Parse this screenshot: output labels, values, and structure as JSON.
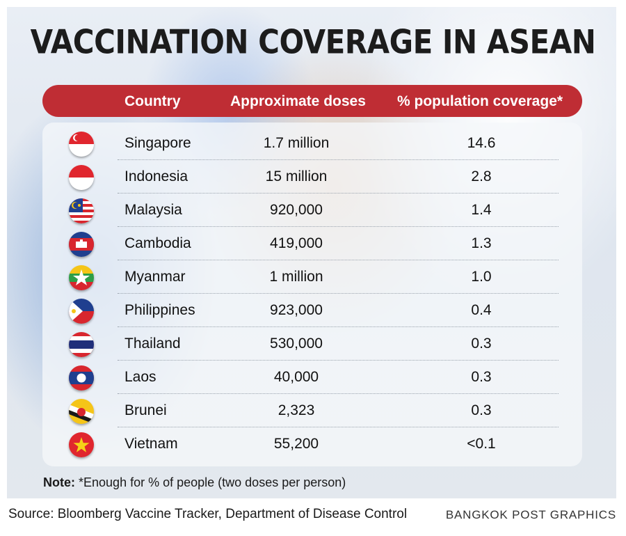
{
  "title": "VACCINATION COVERAGE IN ASEAN",
  "columns": [
    "Country",
    "Approximate doses",
    "% population coverage*"
  ],
  "chart_data": {
    "type": "table",
    "title": "VACCINATION COVERAGE IN ASEAN",
    "columns": [
      "Country",
      "Approximate doses",
      "% population coverage*"
    ],
    "rows": [
      {
        "country": "Singapore",
        "flag": "singapore-flag-icon",
        "doses": "1.7 million",
        "coverage": "14.6"
      },
      {
        "country": "Indonesia",
        "flag": "indonesia-flag-icon",
        "doses": "15 million",
        "coverage": "2.8"
      },
      {
        "country": "Malaysia",
        "flag": "malaysia-flag-icon",
        "doses": "920,000",
        "coverage": "1.4"
      },
      {
        "country": "Cambodia",
        "flag": "cambodia-flag-icon",
        "doses": "419,000",
        "coverage": "1.3"
      },
      {
        "country": "Myanmar",
        "flag": "myanmar-flag-icon",
        "doses": "1 million",
        "coverage": "1.0"
      },
      {
        "country": "Philippines",
        "flag": "philippines-flag-icon",
        "doses": "923,000",
        "coverage": "0.4"
      },
      {
        "country": "Thailand",
        "flag": "thailand-flag-icon",
        "doses": "530,000",
        "coverage": "0.3"
      },
      {
        "country": "Laos",
        "flag": "laos-flag-icon",
        "doses": "40,000",
        "coverage": "0.3"
      },
      {
        "country": "Brunei",
        "flag": "brunei-flag-icon",
        "doses": "2,323",
        "coverage": "0.3"
      },
      {
        "country": "Vietnam",
        "flag": "vietnam-flag-icon",
        "doses": "55,200",
        "coverage": "<0.1"
      }
    ]
  },
  "note": {
    "label": "Note:",
    "text": "*Enough for % of people (two doses per person)"
  },
  "source": "Source: Bloomberg Vaccine Tracker, Department of Disease Control",
  "credit": "BANGKOK POST GRAPHICS",
  "colors": {
    "header_bar": "#bf2d34",
    "title": "#1c1c1c"
  }
}
